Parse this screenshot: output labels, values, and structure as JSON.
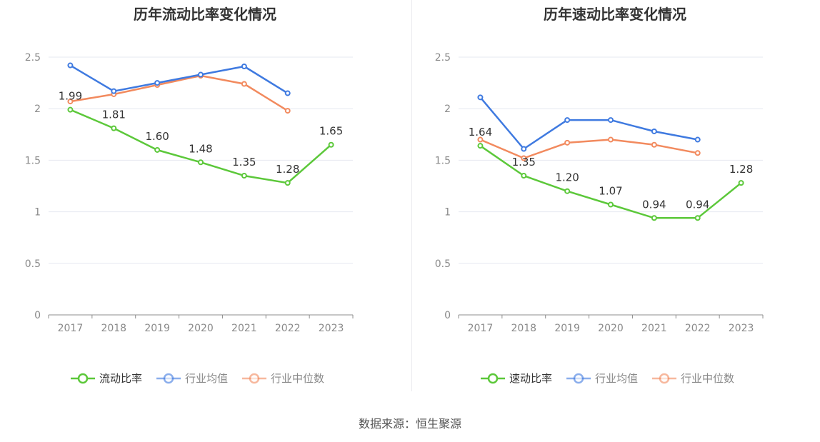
{
  "source_text": "数据来源：恒生聚源",
  "chart_data": [
    {
      "type": "line",
      "title": "历年流动比率变化情况",
      "categories": [
        "2017",
        "2018",
        "2019",
        "2020",
        "2021",
        "2022",
        "2023"
      ],
      "ylim": [
        0,
        2.5
      ],
      "yticks": [
        "0",
        "0.5",
        "1",
        "1.5",
        "2",
        "2.5"
      ],
      "grid": true,
      "legend_position": "bottom",
      "series": [
        {
          "name": "流动比率",
          "values": [
            1.99,
            1.81,
            1.6,
            1.48,
            1.35,
            1.28,
            1.65
          ],
          "labels": [
            "1.99",
            "1.81",
            "1.60",
            "1.48",
            "1.35",
            "1.28",
            "1.65"
          ],
          "color": "#5cc83a"
        },
        {
          "name": "行业均值",
          "values": [
            2.42,
            2.17,
            2.25,
            2.33,
            2.41,
            2.15,
            null
          ],
          "color": "#3f7ae0"
        },
        {
          "name": "行业中位数",
          "values": [
            2.07,
            2.14,
            2.23,
            2.32,
            2.24,
            1.98,
            null
          ],
          "color": "#f28a5e"
        }
      ]
    },
    {
      "type": "line",
      "title": "历年速动比率变化情况",
      "categories": [
        "2017",
        "2018",
        "2019",
        "2020",
        "2021",
        "2022",
        "2023"
      ],
      "ylim": [
        0,
        2.5
      ],
      "yticks": [
        "0",
        "0.5",
        "1",
        "1.5",
        "2",
        "2.5"
      ],
      "grid": true,
      "legend_position": "bottom",
      "series": [
        {
          "name": "速动比率",
          "values": [
            1.64,
            1.35,
            1.2,
            1.07,
            0.94,
            0.94,
            1.28
          ],
          "labels": [
            "1.64",
            "1.35",
            "1.20",
            "1.07",
            "0.94",
            "0.94",
            "1.28"
          ],
          "color": "#5cc83a"
        },
        {
          "name": "行业均值",
          "values": [
            2.11,
            1.61,
            1.89,
            1.89,
            1.78,
            1.7,
            null
          ],
          "color": "#3f7ae0"
        },
        {
          "name": "行业中位数",
          "values": [
            1.7,
            1.52,
            1.67,
            1.7,
            1.65,
            1.57,
            null
          ],
          "color": "#f28a5e"
        }
      ]
    }
  ]
}
